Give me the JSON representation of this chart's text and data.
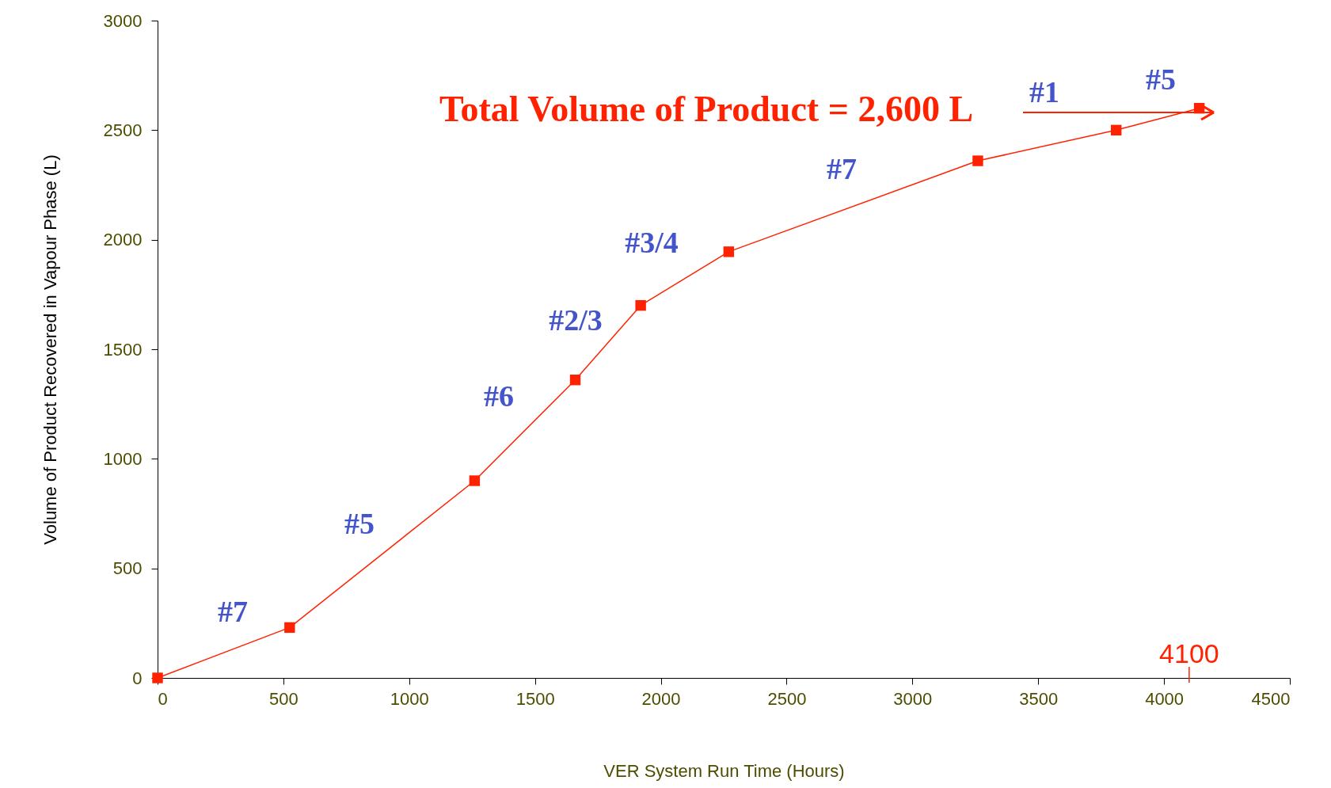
{
  "chart_data": {
    "type": "line",
    "xlabel": "VER System Run Time (Hours)",
    "ylabel": "Volume of Product Recovered in Vapour Phase (L)",
    "x": [
      0,
      525,
      1260,
      1660,
      1920,
      2270,
      3260,
      3810,
      4140
    ],
    "series": [
      {
        "color": "#ff2200",
        "values": [
          0,
          230,
          900,
          1360,
          1700,
          1945,
          2360,
          2500,
          2600
        ]
      }
    ],
    "xlim": [
      0,
      4500
    ],
    "xticks": [
      0,
      500,
      1000,
      1500,
      2000,
      2500,
      3000,
      3500,
      4000,
      4500
    ],
    "ylim": [
      0,
      3000
    ],
    "yticks": [
      0,
      500,
      1000,
      1500,
      2000,
      2500,
      3000
    ],
    "grid": false,
    "marker": "square",
    "line_style": "solid",
    "ref_lines": [
      {
        "axis": "x",
        "value": 4100,
        "label": "4100",
        "color": "#ff2200"
      }
    ],
    "annotations": [
      "#7",
      "#5",
      "#6",
      "#2/3",
      "#3/4",
      "#7",
      "#1",
      "#5",
      "Total Volume of Product = 2,600 L"
    ]
  }
}
